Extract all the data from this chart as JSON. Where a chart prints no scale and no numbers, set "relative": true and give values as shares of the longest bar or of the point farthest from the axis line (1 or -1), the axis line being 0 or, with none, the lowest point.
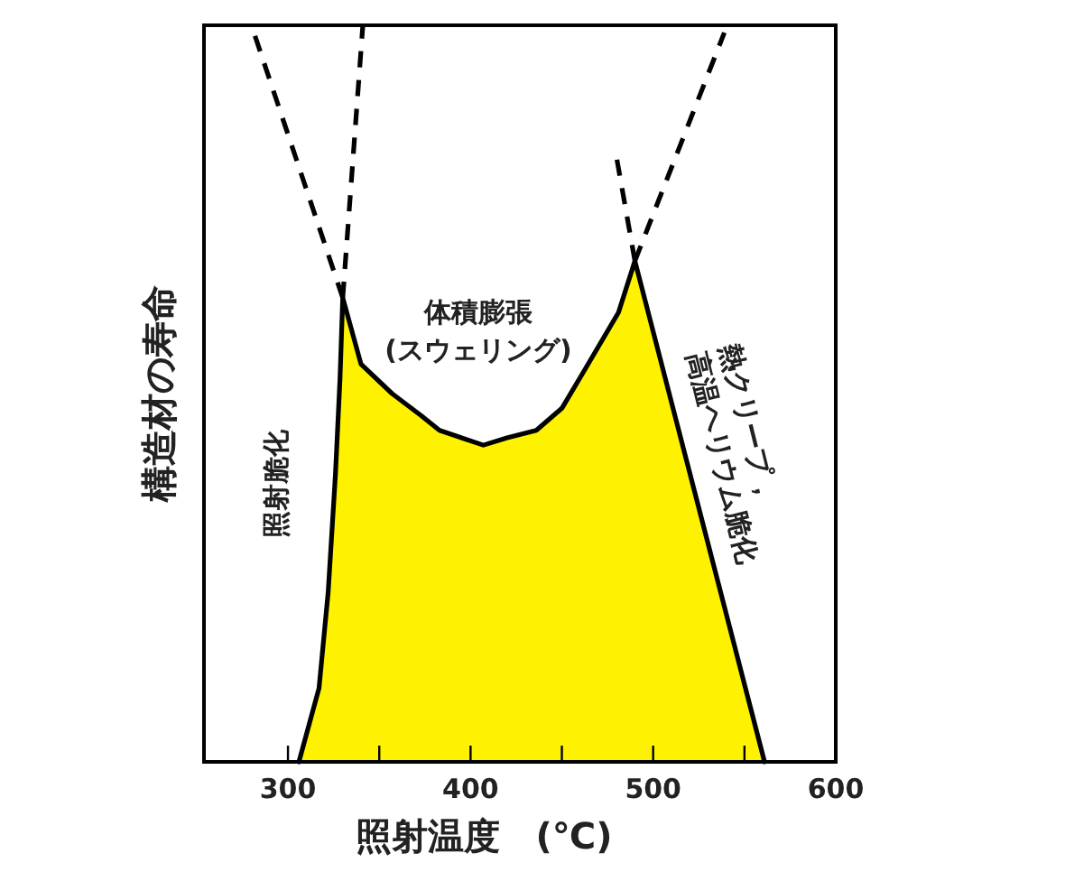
{
  "chart_data": {
    "type": "area",
    "relative": true,
    "ylabel": "構造材の寿命",
    "xlabel": "照射温度　(℃)",
    "xlim": [
      254,
      600
    ],
    "xticks": [
      300,
      {
        "value": 350,
        "label": null
      },
      400,
      {
        "value": 450,
        "label": null
      },
      500,
      {
        "value": 550,
        "label": null
      },
      600
    ],
    "annotations": [
      "体積膨張\n(スウェリング)",
      "照射脆化",
      "熱クリープ，\n高温ヘリウム脆化"
    ],
    "series": [
      {
        "color": "#fff200",
        "x": [
          306,
          317,
          322,
          326,
          328.5,
          330,
          340,
          357,
          373,
          383,
          395,
          407,
          420,
          436,
          450,
          462,
          481,
          490,
          561
        ],
        "values": [
          0,
          0.1,
          0.23,
          0.39,
          0.52,
          0.63,
          0.54,
          0.5,
          0.47,
          0.45,
          0.44,
          0.43,
          0.44,
          0.45,
          0.48,
          0.53,
          0.61,
          0.68,
          0
        ]
      },
      {
        "type": "line",
        "line_style": "dashed",
        "color": "#000000",
        "x": [
          330,
          280
        ],
        "values": [
          0.63,
          1
        ]
      },
      {
        "type": "line",
        "line_style": "dashed",
        "color": "#000000",
        "x": [
          330,
          341
        ],
        "values": [
          0.63,
          1
        ]
      },
      {
        "type": "line",
        "line_style": "dashed",
        "color": "#000000",
        "x": [
          490,
          480
        ],
        "values": [
          0.68,
          0.82
        ]
      },
      {
        "type": "line",
        "line_style": "dashed",
        "color": "#000000",
        "x": [
          490,
          539
        ],
        "values": [
          0.68,
          0.99
        ]
      }
    ]
  }
}
